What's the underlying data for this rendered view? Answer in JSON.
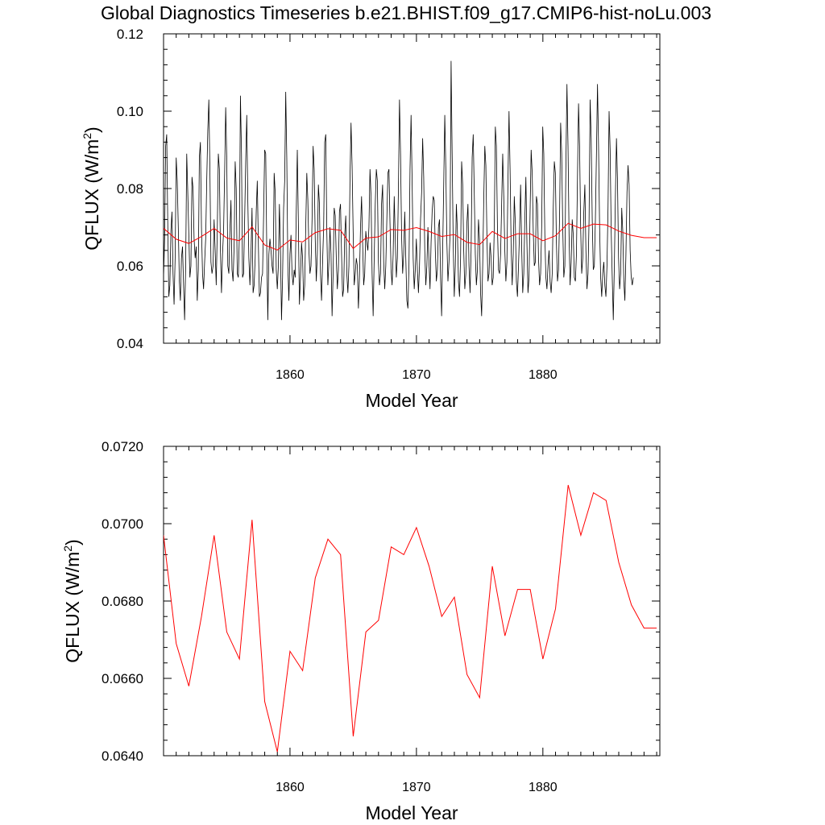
{
  "title": "Global Diagnostics Timeseries b.e21.BHIST.f09_g17.CMIP6-hist-noLu.003",
  "colors": {
    "monthly": "#000000",
    "annual": "#ff0000",
    "frame": "#000000"
  },
  "chart_data": [
    {
      "type": "line",
      "ylabel": "QFLUX (W/m",
      "ylabel_sup": "2",
      "ylabel_close": ")",
      "xlabel": "Model Year",
      "xlim": [
        1850,
        1889.25
      ],
      "ylim": [
        0.04,
        0.12
      ],
      "x_ticks": [
        1860,
        1870,
        1880
      ],
      "x_tick_labels": [
        "1860",
        "1870",
        "1880"
      ],
      "y_ticks": [
        0.04,
        0.06,
        0.08,
        0.1,
        0.12
      ],
      "y_tick_labels": [
        "0.04",
        "0.06",
        "0.08",
        "0.10",
        "0.12"
      ],
      "series": [
        {
          "kind": "monthly",
          "start_year": 1850,
          "step": 0.0833,
          "values": [
            0.057,
            0.067,
            0.091,
            0.094,
            0.071,
            0.052,
            0.055,
            0.069,
            0.074,
            0.058,
            0.05,
            0.062,
            0.088,
            0.082,
            0.07,
            0.056,
            0.051,
            0.062,
            0.065,
            0.055,
            0.046,
            0.06,
            0.089,
            0.079,
            0.068,
            0.057,
            0.06,
            0.083,
            0.08,
            0.067,
            0.062,
            0.065,
            0.051,
            0.059,
            0.088,
            0.092,
            0.07,
            0.058,
            0.054,
            0.061,
            0.067,
            0.082,
            0.095,
            0.103,
            0.085,
            0.061,
            0.058,
            0.06,
            0.072,
            0.064,
            0.055,
            0.069,
            0.089,
            0.085,
            0.064,
            0.053,
            0.063,
            0.069,
            0.084,
            0.101,
            0.088,
            0.06,
            0.058,
            0.069,
            0.077,
            0.059,
            0.056,
            0.065,
            0.087,
            0.08,
            0.058,
            0.057,
            0.068,
            0.104,
            0.089,
            0.057,
            0.058,
            0.072,
            0.087,
            0.099,
            0.077,
            0.062,
            0.055,
            0.063,
            0.075,
            0.053,
            0.055,
            0.062,
            0.074,
            0.082,
            0.066,
            0.052,
            0.053,
            0.057,
            0.058,
            0.073,
            0.09,
            0.089,
            0.064,
            0.046,
            0.063,
            0.067,
            0.064,
            0.06,
            0.058,
            0.084,
            0.079,
            0.059,
            0.054,
            0.06,
            0.076,
            0.064,
            0.046,
            0.057,
            0.075,
            0.082,
            0.105,
            0.088,
            0.06,
            0.051,
            0.063,
            0.068,
            0.058,
            0.055,
            0.059,
            0.057,
            0.074,
            0.09,
            0.071,
            0.05,
            0.057,
            0.066,
            0.062,
            0.051,
            0.055,
            0.07,
            0.084,
            0.077,
            0.064,
            0.058,
            0.06,
            0.072,
            0.091,
            0.085,
            0.067,
            0.056,
            0.063,
            0.081,
            0.076,
            0.058,
            0.051,
            0.061,
            0.07,
            0.092,
            0.094,
            0.069,
            0.055,
            0.061,
            0.07,
            0.063,
            0.047,
            0.058,
            0.075,
            0.073,
            0.062,
            0.054,
            0.059,
            0.074,
            0.076,
            0.063,
            0.052,
            0.054,
            0.068,
            0.073,
            0.058,
            0.053,
            0.06,
            0.082,
            0.097,
            0.086,
            0.069,
            0.055,
            0.058,
            0.062,
            0.06,
            0.049,
            0.057,
            0.07,
            0.078,
            0.066,
            0.055,
            0.058,
            0.069,
            0.066,
            0.064,
            0.07,
            0.085,
            0.078,
            0.058,
            0.047,
            0.062,
            0.076,
            0.085,
            0.082,
            0.061,
            0.055,
            0.058,
            0.076,
            0.081,
            0.061,
            0.054,
            0.06,
            0.072,
            0.084,
            0.085,
            0.071,
            0.059,
            0.055,
            0.063,
            0.078,
            0.067,
            0.057,
            0.062,
            0.08,
            0.103,
            0.089,
            0.068,
            0.058,
            0.063,
            0.074,
            0.062,
            0.051,
            0.049,
            0.06,
            0.085,
            0.099,
            0.082,
            0.062,
            0.054,
            0.059,
            0.067,
            0.059,
            0.053,
            0.06,
            0.072,
            0.079,
            0.093,
            0.083,
            0.064,
            0.055,
            0.06,
            0.07,
            0.061,
            0.054,
            0.066,
            0.074,
            0.078,
            0.077,
            0.064,
            0.056,
            0.059,
            0.07,
            0.072,
            0.057,
            0.047,
            0.064,
            0.081,
            0.099,
            0.085,
            0.066,
            0.056,
            0.061,
            0.068,
            0.113,
            0.089,
            0.066,
            0.052,
            0.06,
            0.076,
            0.069,
            0.056,
            0.052,
            0.062,
            0.087,
            0.081,
            0.064,
            0.054,
            0.058,
            0.071,
            0.076,
            0.06,
            0.053,
            0.064,
            0.088,
            0.094,
            0.079,
            0.063,
            0.055,
            0.059,
            0.072,
            0.067,
            0.053,
            0.047,
            0.06,
            0.077,
            0.091,
            0.086,
            0.068,
            0.056,
            0.058,
            0.066,
            0.062,
            0.055,
            0.057,
            0.07,
            0.096,
            0.091,
            0.07,
            0.059,
            0.058,
            0.063,
            0.076,
            0.089,
            0.078,
            0.064,
            0.056,
            0.061,
            0.082,
            0.1,
            0.085,
            0.065,
            0.055,
            0.063,
            0.078,
            0.071,
            0.056,
            0.052,
            0.06,
            0.069,
            0.081,
            0.065,
            0.053,
            0.058,
            0.072,
            0.083,
            0.066,
            0.053,
            0.057,
            0.074,
            0.09,
            0.084,
            0.069,
            0.06,
            0.061,
            0.078,
            0.076,
            0.062,
            0.055,
            0.058,
            0.07,
            0.096,
            0.089,
            0.068,
            0.057,
            0.054,
            0.06,
            0.064,
            0.056,
            0.053,
            0.058,
            0.075,
            0.087,
            0.084,
            0.066,
            0.056,
            0.059,
            0.073,
            0.097,
            0.089,
            0.07,
            0.057,
            0.06,
            0.086,
            0.107,
            0.091,
            0.068,
            0.055,
            0.061,
            0.072,
            0.068,
            0.057,
            0.056,
            0.063,
            0.083,
            0.102,
            0.091,
            0.07,
            0.058,
            0.062,
            0.074,
            0.081,
            0.064,
            0.054,
            0.058,
            0.072,
            0.103,
            0.093,
            0.072,
            0.059,
            0.06,
            0.072,
            0.089,
            0.107,
            0.091,
            0.07,
            0.057,
            0.052,
            0.058,
            0.061,
            0.055,
            0.052,
            0.06,
            0.075,
            0.1,
            0.09,
            0.069,
            0.057,
            0.046,
            0.06,
            0.078,
            0.093,
            0.082,
            0.062,
            0.054,
            0.058,
            0.075,
            0.069,
            0.056,
            0.051,
            0.063,
            0.079,
            0.086,
            0.081,
            0.064,
            0.057,
            0.055,
            0.057
          ]
        },
        {
          "kind": "annual",
          "x": [
            1850,
            1851,
            1852,
            1853,
            1854,
            1855,
            1856,
            1857,
            1858,
            1859,
            1860,
            1861,
            1862,
            1863,
            1864,
            1865,
            1866,
            1867,
            1868,
            1869,
            1870,
            1871,
            1872,
            1873,
            1874,
            1875,
            1876,
            1877,
            1878,
            1879,
            1880,
            1881,
            1882,
            1883,
            1884,
            1885,
            1886,
            1887,
            1888,
            1889
          ],
          "values": [
            0.0697,
            0.0669,
            0.0658,
            0.0676,
            0.0697,
            0.0672,
            0.0665,
            0.0701,
            0.0654,
            0.0641,
            0.0667,
            0.0662,
            0.0686,
            0.0696,
            0.0692,
            0.0645,
            0.0672,
            0.0675,
            0.0694,
            0.0692,
            0.0699,
            0.0689,
            0.0676,
            0.0681,
            0.0661,
            0.0655,
            0.0689,
            0.0671,
            0.0683,
            0.0683,
            0.0665,
            0.0678,
            0.071,
            0.0697,
            0.0708,
            0.0706,
            0.069,
            0.0679,
            0.0673,
            0.0673
          ]
        }
      ]
    },
    {
      "type": "line",
      "ylabel": "QFLUX (W/m",
      "ylabel_sup": "2",
      "ylabel_close": ")",
      "xlabel": "Model Year",
      "xlim": [
        1850,
        1889.25
      ],
      "ylim": [
        0.064,
        0.072
      ],
      "x_ticks": [
        1860,
        1870,
        1880
      ],
      "x_tick_labels": [
        "1860",
        "1870",
        "1880"
      ],
      "y_ticks": [
        0.064,
        0.066,
        0.068,
        0.07,
        0.072
      ],
      "y_tick_labels": [
        "0.0640",
        "0.0660",
        "0.0680",
        "0.0700",
        "0.0720"
      ],
      "series": [
        {
          "kind": "annual",
          "x": [
            1850,
            1851,
            1852,
            1853,
            1854,
            1855,
            1856,
            1857,
            1858,
            1859,
            1860,
            1861,
            1862,
            1863,
            1864,
            1865,
            1866,
            1867,
            1868,
            1869,
            1870,
            1871,
            1872,
            1873,
            1874,
            1875,
            1876,
            1877,
            1878,
            1879,
            1880,
            1881,
            1882,
            1883,
            1884,
            1885,
            1886,
            1887,
            1888,
            1889
          ],
          "values": [
            0.0697,
            0.0669,
            0.0658,
            0.0676,
            0.0697,
            0.0672,
            0.0665,
            0.0701,
            0.0654,
            0.0641,
            0.0667,
            0.0662,
            0.0686,
            0.0696,
            0.0692,
            0.0645,
            0.0672,
            0.0675,
            0.0694,
            0.0692,
            0.0699,
            0.0689,
            0.0676,
            0.0681,
            0.0661,
            0.0655,
            0.0689,
            0.0671,
            0.0683,
            0.0683,
            0.0665,
            0.0678,
            0.071,
            0.0697,
            0.0708,
            0.0706,
            0.069,
            0.0679,
            0.0673,
            0.0673
          ]
        }
      ]
    }
  ]
}
